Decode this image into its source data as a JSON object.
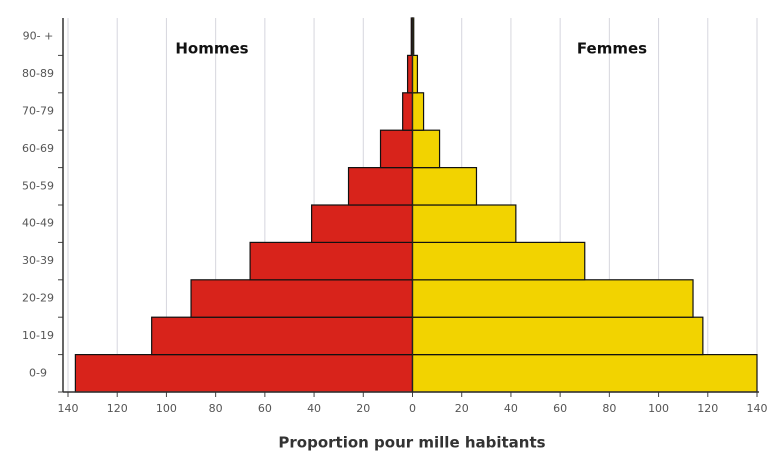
{
  "chart_data": {
    "type": "bar",
    "orientation": "horizontal",
    "xlabel": "Proportion pour mille habitants",
    "categories": [
      "0-9",
      "10-19",
      "20-29",
      "30-39",
      "40-49",
      "50-59",
      "60-69",
      "70-79",
      "80-89",
      "90- +"
    ],
    "series": [
      {
        "name": "Hommes",
        "color": "#d8231b",
        "values": [
          -137,
          -106,
          -90,
          -66,
          -41,
          -26,
          -13,
          -4,
          -2,
          -0.5
        ]
      },
      {
        "name": "Femmes",
        "color": "#f2d300",
        "values": [
          140,
          118,
          114,
          70,
          42,
          26,
          11,
          4.5,
          2,
          0.5
        ]
      }
    ],
    "xlim": [
      -140,
      140
    ],
    "xticks": [
      {
        "value": -140,
        "label": "140"
      },
      {
        "value": -120,
        "label": "120"
      },
      {
        "value": -100,
        "label": "100"
      },
      {
        "value": -80,
        "label": "80"
      },
      {
        "value": -60,
        "label": "60"
      },
      {
        "value": -40,
        "label": "40"
      },
      {
        "value": -20,
        "label": "20"
      },
      0,
      20,
      40,
      60,
      80,
      100,
      120,
      140
    ],
    "grid": true
  }
}
